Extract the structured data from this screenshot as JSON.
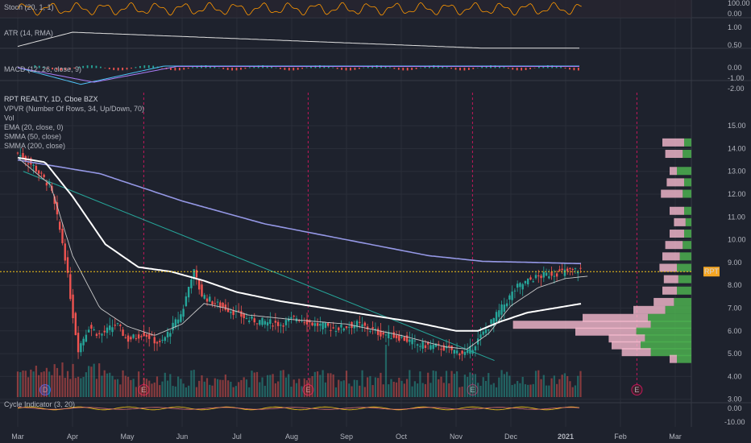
{
  "chart_data": {
    "type": "candlestick",
    "symbol_title": "RPT REALTY, 1D, Cboe BZX",
    "price_tag": "RPT",
    "last_price": 8.6,
    "panes": {
      "stoch": {
        "label": "Stoch (20, 1, 1)",
        "ticks": [
          "100.00",
          "0.00"
        ]
      },
      "atr": {
        "label": "ATR (14, RMA)",
        "ticks": [
          "1.00",
          "0.50",
          "0.00"
        ]
      },
      "macd": {
        "label": "MACD (12, 26, close, 9)",
        "ticks": [
          "0.00",
          "-1.00",
          "-2.00"
        ]
      },
      "cycle": {
        "label": "Cycle Indicator (3, 20)",
        "ticks": [
          "0.00",
          "-10.00"
        ]
      }
    },
    "indicator_labels": [
      "VPVR (Number Of Rows, 34, Up/Down, 70)",
      "Vol",
      "EMA (20, close, 0)",
      "SMMA (50, close)",
      "SMMA (200, close)"
    ],
    "y_ticks": [
      15,
      14,
      13,
      12,
      11,
      10,
      9,
      8,
      7,
      6,
      5,
      4,
      3
    ],
    "y_range": [
      2.6,
      15.5
    ],
    "x_labels": [
      "Mar",
      "Apr",
      "May",
      "Jun",
      "Jul",
      "Aug",
      "Sep",
      "Oct",
      "Nov",
      "Dec",
      "2021",
      "Feb",
      "Mar"
    ],
    "events": [
      {
        "label": "D",
        "month": 0.5,
        "color": "#2962ff"
      },
      {
        "label": "E",
        "month": 2.3
      },
      {
        "label": "E",
        "month": 5.3
      },
      {
        "label": "E",
        "month": 8.3
      },
      {
        "label": "E",
        "month": 11.3
      }
    ],
    "price_path": [
      [
        0.0,
        13.8
      ],
      [
        0.3,
        13.2
      ],
      [
        0.6,
        12.3
      ],
      [
        0.85,
        9.5
      ],
      [
        1.0,
        6.8
      ],
      [
        1.1,
        5.2
      ],
      [
        1.3,
        6.2
      ],
      [
        1.5,
        5.8
      ],
      [
        1.8,
        6.3
      ],
      [
        2.0,
        5.6
      ],
      [
        2.3,
        5.9
      ],
      [
        2.6,
        5.4
      ],
      [
        2.8,
        6.1
      ],
      [
        3.0,
        6.8
      ],
      [
        3.2,
        8.7
      ],
      [
        3.35,
        7.6
      ],
      [
        3.6,
        7.2
      ],
      [
        3.9,
        6.9
      ],
      [
        4.2,
        6.5
      ],
      [
        4.5,
        6.4
      ],
      [
        4.8,
        6.3
      ],
      [
        5.1,
        6.6
      ],
      [
        5.4,
        6.3
      ],
      [
        5.8,
        6.1
      ],
      [
        6.2,
        6.3
      ],
      [
        6.6,
        5.9
      ],
      [
        7.0,
        5.7
      ],
      [
        7.3,
        5.4
      ],
      [
        7.7,
        5.3
      ],
      [
        8.0,
        5.1
      ],
      [
        8.2,
        5.0
      ],
      [
        8.5,
        5.9
      ],
      [
        8.8,
        6.9
      ],
      [
        9.1,
        7.9
      ],
      [
        9.4,
        8.3
      ],
      [
        9.7,
        8.5
      ],
      [
        10.0,
        8.6
      ],
      [
        10.3,
        8.7
      ]
    ],
    "ema20_path": [
      [
        0.0,
        13.6
      ],
      [
        0.6,
        12.4
      ],
      [
        1.0,
        9.3
      ],
      [
        1.5,
        7.0
      ],
      [
        2.0,
        6.2
      ],
      [
        2.5,
        5.8
      ],
      [
        3.0,
        6.3
      ],
      [
        3.4,
        7.2
      ],
      [
        3.8,
        7.0
      ],
      [
        4.2,
        6.7
      ],
      [
        5.0,
        6.5
      ],
      [
        6.0,
        6.3
      ],
      [
        7.0,
        5.8
      ],
      [
        7.8,
        5.3
      ],
      [
        8.2,
        5.2
      ],
      [
        8.6,
        5.9
      ],
      [
        9.0,
        7.1
      ],
      [
        9.5,
        7.9
      ],
      [
        10.0,
        8.3
      ],
      [
        10.4,
        8.4
      ]
    ],
    "smma50_path": [
      [
        0.0,
        13.6
      ],
      [
        0.5,
        13.4
      ],
      [
        1.0,
        11.9
      ],
      [
        1.6,
        9.8
      ],
      [
        2.2,
        8.8
      ],
      [
        2.8,
        8.6
      ],
      [
        3.4,
        8.2
      ],
      [
        4.0,
        7.7
      ],
      [
        4.8,
        7.3
      ],
      [
        5.6,
        7.0
      ],
      [
        6.4,
        6.7
      ],
      [
        7.2,
        6.4
      ],
      [
        8.0,
        6.0
      ],
      [
        8.4,
        6.0
      ],
      [
        8.8,
        6.4
      ],
      [
        9.3,
        6.8
      ],
      [
        9.8,
        7.0
      ],
      [
        10.3,
        7.2
      ]
    ],
    "smma200_path": [
      [
        0.0,
        13.5
      ],
      [
        1.5,
        12.9
      ],
      [
        3.0,
        11.7
      ],
      [
        4.5,
        10.7
      ],
      [
        6.0,
        10.0
      ],
      [
        7.5,
        9.3
      ],
      [
        8.5,
        9.05
      ],
      [
        9.5,
        9.0
      ],
      [
        10.3,
        8.95
      ]
    ],
    "trendline": [
      [
        0.1,
        13.0
      ],
      [
        8.7,
        4.7
      ]
    ],
    "volume_profile": [
      {
        "price": 14.25,
        "up": 0.05,
        "down": 0.15
      },
      {
        "price": 13.75,
        "up": 0.06,
        "down": 0.12
      },
      {
        "price": 13.0,
        "up": 0.1,
        "down": 0.05
      },
      {
        "price": 12.5,
        "up": 0.05,
        "down": 0.12
      },
      {
        "price": 12.0,
        "up": 0.06,
        "down": 0.15
      },
      {
        "price": 11.25,
        "up": 0.05,
        "down": 0.1
      },
      {
        "price": 10.75,
        "up": 0.04,
        "down": 0.08
      },
      {
        "price": 10.25,
        "up": 0.05,
        "down": 0.1
      },
      {
        "price": 9.75,
        "up": 0.06,
        "down": 0.12
      },
      {
        "price": 9.25,
        "up": 0.08,
        "down": 0.12
      },
      {
        "price": 8.75,
        "up": 0.1,
        "down": 0.12
      },
      {
        "price": 8.25,
        "up": 0.09,
        "down": 0.1
      },
      {
        "price": 7.75,
        "up": 0.1,
        "down": 0.1
      },
      {
        "price": 7.25,
        "up": 0.12,
        "down": 0.14
      },
      {
        "price": 6.9,
        "up": 0.18,
        "down": 0.22
      },
      {
        "price": 6.55,
        "up": 0.3,
        "down": 0.45
      },
      {
        "price": 6.25,
        "up": 0.28,
        "down": 0.95
      },
      {
        "price": 5.95,
        "up": 0.38,
        "down": 0.42
      },
      {
        "price": 5.65,
        "up": 0.32,
        "down": 0.25
      },
      {
        "price": 5.35,
        "up": 0.35,
        "down": 0.2
      },
      {
        "price": 5.05,
        "up": 0.28,
        "down": 0.2
      },
      {
        "price": 4.75,
        "up": 0.1,
        "down": 0.05
      }
    ]
  },
  "colors": {
    "background": "#1e222d",
    "grid": "#2a2e39",
    "up": "#26a69a",
    "down": "#ef5350",
    "ema": "#c9c9c9",
    "smma50": "#ffffff",
    "smma200": "#9598e6",
    "trendline": "#26a69a",
    "price_line": "#f5c518",
    "event_line": "#c2185b"
  }
}
